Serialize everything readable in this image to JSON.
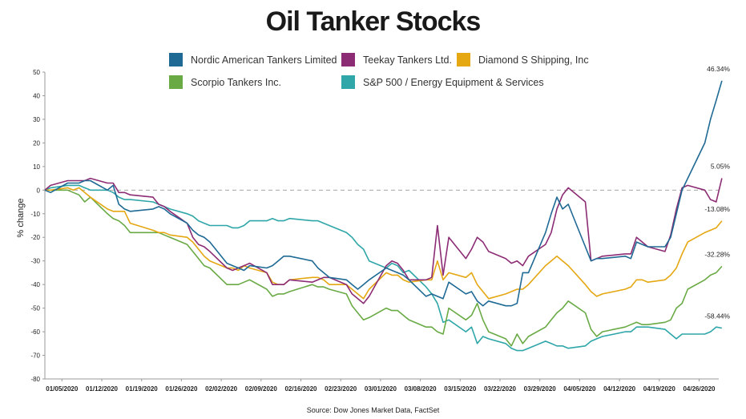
{
  "header": {
    "title": "Oil Tanker Stocks"
  },
  "source": "Source: Dow Jones Market Data, FactSet",
  "colors": {
    "nat": "#1f6a94",
    "tnk": "#8c2c74",
    "dss": "#e5a712",
    "stng": "#6aaa45",
    "spx": "#2fa6a8",
    "zero_line": "#999999",
    "axis": "#999999"
  },
  "chart_data": {
    "type": "line",
    "title": "Oil Tanker Stocks",
    "ylabel": "% change",
    "xlabel": "",
    "ylim": [
      -80,
      50
    ],
    "yticks": [
      50,
      40,
      30,
      20,
      10,
      0,
      -10,
      -20,
      -30,
      -40,
      -50,
      -60,
      -70,
      -80
    ],
    "x_start": "2020-01-02",
    "xticks": [
      {
        "label": "01/05/2020",
        "date": "2020-01-05"
      },
      {
        "label": "01/12/2020",
        "date": "2020-01-12"
      },
      {
        "label": "01/19/2020",
        "date": "2020-01-19"
      },
      {
        "label": "01/26/2020",
        "date": "2020-01-26"
      },
      {
        "label": "02/02/2020",
        "date": "2020-02-02"
      },
      {
        "label": "02/09/2020",
        "date": "2020-02-09"
      },
      {
        "label": "02/16/2020",
        "date": "2020-02-16"
      },
      {
        "label": "02/23/2020",
        "date": "2020-02-23"
      },
      {
        "label": "03/01/2020",
        "date": "2020-03-01"
      },
      {
        "label": "03/08/2020",
        "date": "2020-03-08"
      },
      {
        "label": "03/15/2020",
        "date": "2020-03-15"
      },
      {
        "label": "03/22/2020",
        "date": "2020-03-22"
      },
      {
        "label": "03/29/2020",
        "date": "2020-03-29"
      },
      {
        "label": "04/05/2020",
        "date": "2020-04-05"
      },
      {
        "label": "04/12/2020",
        "date": "2020-04-12"
      },
      {
        "label": "04/19/2020",
        "date": "2020-04-19"
      },
      {
        "label": "04/26/2020",
        "date": "2020-04-26"
      }
    ],
    "x": [
      "2020-01-02",
      "2020-01-03",
      "2020-01-06",
      "2020-01-07",
      "2020-01-08",
      "2020-01-09",
      "2020-01-10",
      "2020-01-13",
      "2020-01-14",
      "2020-01-15",
      "2020-01-16",
      "2020-01-17",
      "2020-01-21",
      "2020-01-22",
      "2020-01-23",
      "2020-01-24",
      "2020-01-27",
      "2020-01-28",
      "2020-01-29",
      "2020-01-30",
      "2020-01-31",
      "2020-02-03",
      "2020-02-04",
      "2020-02-05",
      "2020-02-06",
      "2020-02-07",
      "2020-02-10",
      "2020-02-11",
      "2020-02-12",
      "2020-02-13",
      "2020-02-14",
      "2020-02-18",
      "2020-02-19",
      "2020-02-20",
      "2020-02-21",
      "2020-02-24",
      "2020-02-25",
      "2020-02-26",
      "2020-02-27",
      "2020-02-28",
      "2020-03-02",
      "2020-03-03",
      "2020-03-04",
      "2020-03-05",
      "2020-03-06",
      "2020-03-09",
      "2020-03-10",
      "2020-03-11",
      "2020-03-12",
      "2020-03-13",
      "2020-03-16",
      "2020-03-17",
      "2020-03-18",
      "2020-03-19",
      "2020-03-20",
      "2020-03-23",
      "2020-03-24",
      "2020-03-25",
      "2020-03-26",
      "2020-03-27",
      "2020-03-30",
      "2020-03-31",
      "2020-04-01",
      "2020-04-02",
      "2020-04-03",
      "2020-04-06",
      "2020-04-07",
      "2020-04-08",
      "2020-04-09",
      "2020-04-13",
      "2020-04-14",
      "2020-04-15",
      "2020-04-16",
      "2020-04-17",
      "2020-04-20",
      "2020-04-21",
      "2020-04-22",
      "2020-04-23",
      "2020-04-24",
      "2020-04-27",
      "2020-04-28",
      "2020-04-29",
      "2020-04-30"
    ],
    "series": [
      {
        "name": "Nordic American Tankers Limited",
        "color": "#1f6a94",
        "end_label": "46.34%",
        "values": [
          0,
          -1,
          3,
          3,
          3,
          4,
          4,
          0,
          2,
          -6,
          -8,
          -9,
          -8,
          -7,
          -8,
          -10,
          -14,
          -17,
          -19,
          -20,
          -22,
          -31,
          -32,
          -33,
          -34,
          -32,
          -33,
          -32,
          -30,
          -28,
          -28,
          -30,
          -33,
          -35,
          -37,
          -38,
          -40,
          -42,
          -40,
          -38,
          -33,
          -34,
          -35,
          -36,
          -38,
          -45,
          -44,
          -45,
          -46,
          -39,
          -44,
          -43,
          -47,
          -49,
          -47,
          -49,
          -49,
          -48,
          -35,
          -35,
          -18,
          -10,
          -3,
          -8,
          -6,
          -24,
          -30,
          -29,
          -29,
          -28,
          -29,
          -22,
          -23,
          -24,
          -24,
          -20,
          -10,
          0,
          5,
          20,
          30,
          38,
          46.34
        ]
      },
      {
        "name": "Teekay Tankers Ltd.",
        "color": "#8c2c74",
        "end_label": "5.05%",
        "values": [
          0,
          2,
          4,
          4,
          4,
          4,
          5,
          3,
          3,
          -1,
          -1,
          -2,
          -3,
          -6,
          -7,
          -9,
          -14,
          -20,
          -23,
          -24,
          -26,
          -33,
          -34,
          -33,
          -32,
          -31,
          -35,
          -40,
          -40,
          -40,
          -38,
          -39,
          -38,
          -37,
          -37,
          -40,
          -44,
          -46,
          -48,
          -45,
          -32,
          -30,
          -31,
          -34,
          -38,
          -38,
          -37,
          -15,
          -36,
          -20,
          -29,
          -25,
          -20,
          -22,
          -26,
          -29,
          -31,
          -30,
          -32,
          -28,
          -23,
          -18,
          -8,
          -2,
          1,
          -5,
          -30,
          -29,
          -28,
          -27,
          -27,
          -20,
          -22,
          -24,
          -26,
          -19,
          -8,
          1,
          2,
          0,
          -4,
          -5,
          5.05
        ]
      },
      {
        "name": "Diamond S Shipping, Inc",
        "color": "#e5a712",
        "end_label": "-13.08%",
        "values": [
          0,
          0,
          1,
          0,
          1,
          -1,
          -3,
          -8,
          -9,
          -9,
          -9,
          -14,
          -17,
          -18,
          -18,
          -19,
          -20,
          -22,
          -25,
          -28,
          -30,
          -33,
          -33,
          -34,
          -32,
          -33,
          -35,
          -39,
          -40,
          -40,
          -38,
          -37,
          -37,
          -38,
          -40,
          -40,
          -42,
          -44,
          -46,
          -42,
          -35,
          -36,
          -36,
          -38,
          -39,
          -38,
          -38,
          -30,
          -38,
          -35,
          -37,
          -35,
          -40,
          -43,
          -46,
          -44,
          -43,
          -42,
          -42,
          -40,
          -32,
          -30,
          -28,
          -30,
          -32,
          -40,
          -43,
          -45,
          -44,
          -42,
          -41,
          -38,
          -38,
          -39,
          -38,
          -36,
          -33,
          -27,
          -22,
          -18,
          -17,
          -16,
          -13.08
        ]
      },
      {
        "name": "Scorpio Tankers Inc.",
        "color": "#6aaa45",
        "end_label": "-32.28%",
        "values": [
          0,
          0,
          0,
          -1,
          -2,
          -5,
          -3,
          -10,
          -12,
          -13,
          -15,
          -18,
          -18,
          -18,
          -19,
          -20,
          -23,
          -26,
          -29,
          -32,
          -33,
          -40,
          -40,
          -40,
          -39,
          -38,
          -42,
          -45,
          -44,
          -44,
          -43,
          -40,
          -41,
          -41,
          -42,
          -44,
          -49,
          -52,
          -55,
          -54,
          -50,
          -51,
          -51,
          -53,
          -55,
          -58,
          -58,
          -60,
          -61,
          -50,
          -55,
          -53,
          -48,
          -55,
          -60,
          -63,
          -66,
          -61,
          -65,
          -62,
          -58,
          -55,
          -52,
          -50,
          -47,
          -52,
          -59,
          -62,
          -60,
          -58,
          -57,
          -56,
          -57,
          -57,
          -56,
          -55,
          -50,
          -48,
          -42,
          -38,
          -36,
          -35,
          -32.28
        ]
      },
      {
        "name": "S&P 500 / Energy Equipment & Services",
        "color": "#2fa6a8",
        "end_label": "-58.44%",
        "values": [
          0,
          1,
          2,
          2,
          2,
          1,
          0,
          0,
          -1,
          -3,
          -4,
          -4,
          -5,
          -6,
          -7,
          -8,
          -10,
          -11,
          -13,
          -14,
          -15,
          -15,
          -16,
          -16,
          -15,
          -13,
          -13,
          -12,
          -13,
          -13,
          -12,
          -13,
          -13,
          -14,
          -15,
          -18,
          -20,
          -23,
          -25,
          -30,
          -33,
          -31,
          -32,
          -35,
          -34,
          -41,
          -44,
          -48,
          -56,
          -55,
          -60,
          -58,
          -65,
          -62,
          -63,
          -65,
          -67,
          -68,
          -68,
          -67,
          -64,
          -65,
          -66,
          -66,
          -67,
          -66,
          -64,
          -63,
          -62,
          -60,
          -60,
          -58,
          -58,
          -58,
          -59,
          -61,
          -63,
          -61,
          -61,
          -61,
          -60,
          -58,
          -58.44
        ]
      }
    ]
  }
}
